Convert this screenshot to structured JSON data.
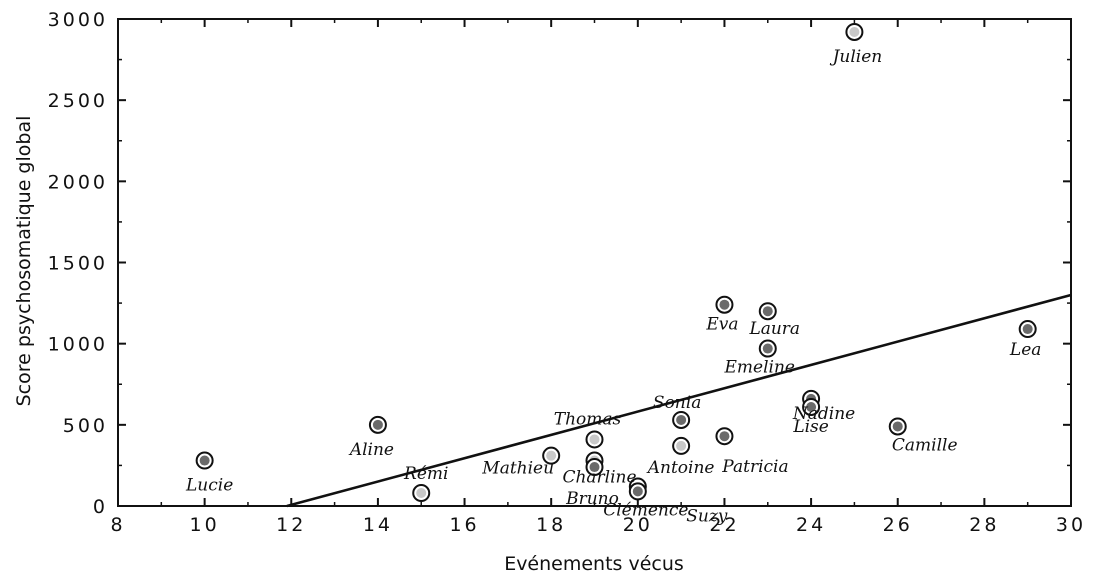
{
  "chart_data": {
    "type": "scatter",
    "title": "",
    "xlabel": "Evénements vécus",
    "ylabel": "Score psychosomatique global",
    "xlim": [
      8,
      30
    ],
    "ylim": [
      0,
      3000
    ],
    "xticks": [
      8,
      10,
      12,
      14,
      16,
      18,
      20,
      22,
      24,
      26,
      28,
      30
    ],
    "yticks": [
      0,
      500,
      1000,
      1500,
      2000,
      2500,
      3000
    ],
    "grid": false,
    "trendline": {
      "x": [
        11.9,
        30
      ],
      "y": [
        0,
        1300
      ]
    },
    "points": [
      {
        "label": "Julien",
        "x": 25,
        "y": 2920,
        "fill": "light"
      },
      {
        "label": "Eva",
        "x": 22,
        "y": 1240,
        "fill": "dark"
      },
      {
        "label": "Laura",
        "x": 23,
        "y": 1200,
        "fill": "dark"
      },
      {
        "label": "Lea",
        "x": 29,
        "y": 1090,
        "fill": "dark"
      },
      {
        "label": "Emeline",
        "x": 23,
        "y": 970,
        "fill": "dark"
      },
      {
        "label": "Nadine",
        "x": 24,
        "y": 660,
        "fill": "dark"
      },
      {
        "label": "Lise",
        "x": 24,
        "y": 610,
        "fill": "dark"
      },
      {
        "label": "Sonia",
        "x": 21,
        "y": 530,
        "fill": "dark"
      },
      {
        "label": "Aline",
        "x": 14,
        "y": 500,
        "fill": "dark"
      },
      {
        "label": "Camille",
        "x": 26,
        "y": 490,
        "fill": "dark"
      },
      {
        "label": "Patricia",
        "x": 22,
        "y": 430,
        "fill": "dark"
      },
      {
        "label": "Thomas",
        "x": 19,
        "y": 410,
        "fill": "light"
      },
      {
        "label": "Antoine",
        "x": 21,
        "y": 370,
        "fill": "light"
      },
      {
        "label": "Mathieu",
        "x": 18,
        "y": 310,
        "fill": "light"
      },
      {
        "label": "Lucie",
        "x": 10,
        "y": 280,
        "fill": "dark"
      },
      {
        "label": "Charline",
        "x": 19,
        "y": 280,
        "fill": "light"
      },
      {
        "label": "Bruno",
        "x": 19,
        "y": 240,
        "fill": "dark"
      },
      {
        "label": "Clémence",
        "x": 20,
        "y": 120,
        "fill": "white"
      },
      {
        "label": "Suzy",
        "x": 20,
        "y": 90,
        "fill": "dark"
      },
      {
        "label": "Rémi",
        "x": 15,
        "y": 80,
        "fill": "light"
      }
    ]
  }
}
